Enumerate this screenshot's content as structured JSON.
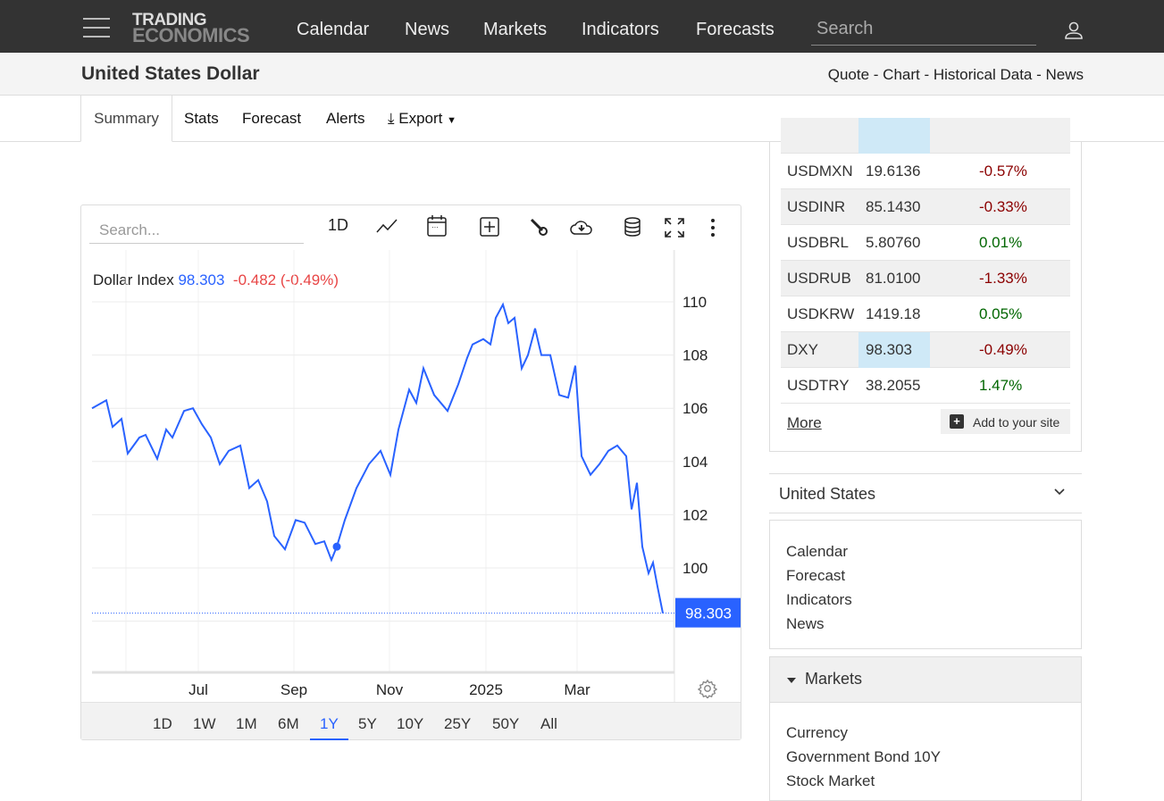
{
  "nav": {
    "logo_line1": "TRADING",
    "logo_line2": "ECONOMICS",
    "links": [
      "Calendar",
      "News",
      "Markets",
      "Indicators",
      "Forecasts"
    ],
    "search_placeholder": "Search"
  },
  "header": {
    "title": "United States Dollar",
    "links": "Quote - Chart - Historical Data - News"
  },
  "tabs": {
    "summary": "Summary",
    "stats": "Stats",
    "forecast": "Forecast",
    "alerts": "Alerts",
    "export": "Export"
  },
  "chart_toolbar": {
    "search_placeholder": "Search...",
    "interval": "1D"
  },
  "legend": {
    "name": "Dollar Index",
    "value": "98.303",
    "change": "-0.482 (-0.49%)"
  },
  "ranges": [
    "1D",
    "1W",
    "1M",
    "6M",
    "1Y",
    "5Y",
    "10Y",
    "25Y",
    "50Y",
    "All"
  ],
  "active_range": "1Y",
  "chart_data": {
    "type": "line",
    "title": "Dollar Index",
    "ylim": [
      97,
      111
    ],
    "yticks": [
      100,
      102,
      104,
      106,
      108,
      110
    ],
    "xticks": [
      "Jul",
      "Sep",
      "Nov",
      "2025",
      "Mar"
    ],
    "last_label": "98.303",
    "color": "#2962ff",
    "x": [
      0,
      16,
      23,
      33,
      40,
      53,
      60,
      73,
      83,
      90,
      103,
      113,
      123,
      133,
      143,
      153,
      166,
      176,
      186,
      196,
      204,
      216,
      228,
      238,
      250,
      260,
      268,
      274,
      283,
      296,
      310,
      323,
      334,
      343,
      355,
      363,
      371,
      383,
      398,
      410,
      420,
      426,
      438,
      446,
      452,
      460,
      466,
      473,
      481,
      488,
      496,
      503,
      513,
      523,
      533,
      541,
      548,
      558,
      568,
      578,
      588,
      598,
      604,
      610,
      616,
      623,
      628,
      633,
      639
    ],
    "values": [
      106.0,
      106.3,
      105.3,
      105.6,
      104.3,
      104.9,
      105.0,
      104.1,
      105.2,
      104.9,
      105.9,
      106.0,
      105.4,
      104.9,
      103.9,
      104.4,
      104.6,
      103.0,
      103.3,
      102.5,
      101.2,
      100.7,
      101.8,
      101.7,
      100.9,
      101.0,
      100.3,
      100.8,
      101.8,
      103.0,
      103.9,
      104.4,
      103.5,
      105.2,
      106.7,
      106.2,
      107.5,
      106.5,
      105.9,
      106.9,
      107.9,
      108.4,
      108.6,
      108.4,
      109.4,
      109.9,
      109.2,
      109.4,
      107.5,
      108.0,
      109.0,
      108.0,
      108.0,
      106.5,
      106.4,
      107.6,
      104.2,
      103.5,
      103.9,
      104.4,
      104.6,
      104.2,
      102.2,
      103.2,
      100.8,
      99.8,
      100.2,
      99.3,
      98.3
    ]
  },
  "quotes": [
    {
      "sym": "USDMXN",
      "price": "19.6136",
      "chg": "-0.57%"
    },
    {
      "sym": "USDINR",
      "price": "85.1430",
      "chg": "-0.33%"
    },
    {
      "sym": "USDBRL",
      "price": "5.80760",
      "chg": "0.01%"
    },
    {
      "sym": "USDRUB",
      "price": "81.0100",
      "chg": "-1.33%"
    },
    {
      "sym": "USDKRW",
      "price": "1419.18",
      "chg": "0.05%"
    },
    {
      "sym": "DXY",
      "price": "98.303",
      "chg": "-0.49%"
    },
    {
      "sym": "USDTRY",
      "price": "38.2055",
      "chg": "1.47%"
    }
  ],
  "quotes_more": "More",
  "add_site": "Add to your site",
  "country": "United States",
  "country_links": [
    "Calendar",
    "Forecast",
    "Indicators",
    "News"
  ],
  "markets": {
    "title": "Markets",
    "links": [
      "Currency",
      "Government Bond 10Y",
      "Stock Market"
    ]
  }
}
